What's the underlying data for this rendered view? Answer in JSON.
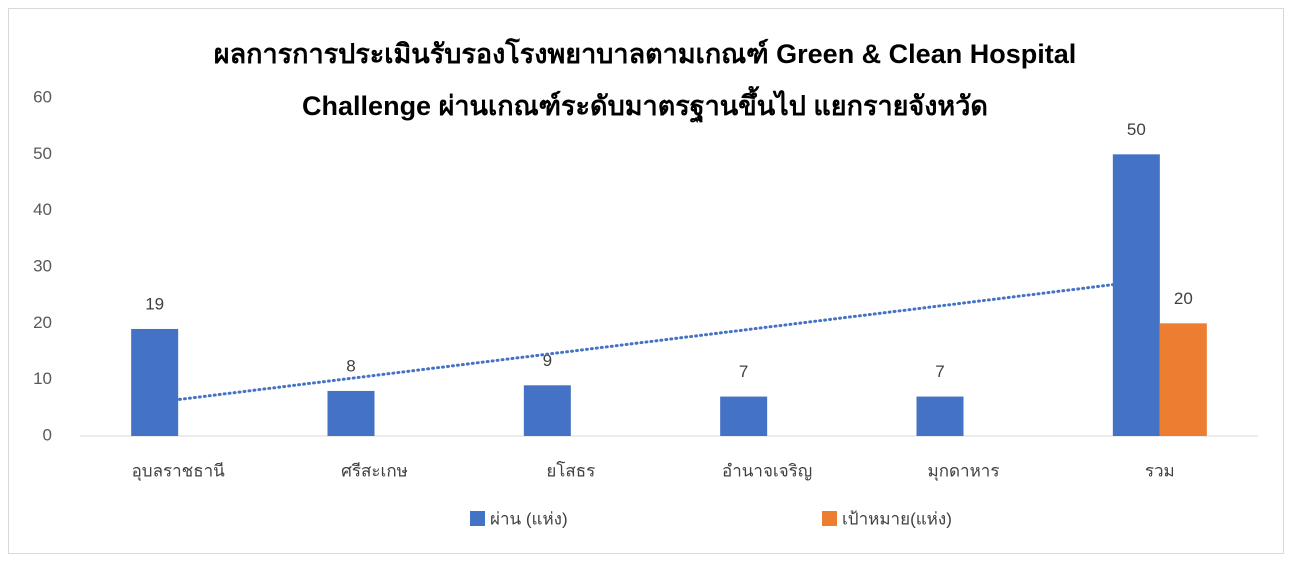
{
  "chart_data": {
    "type": "bar",
    "title": "ผลการการประเมินรับรองโรงพยาบาลตามเกณฑ์ Green & Clean Hospital Challenge ผ่านเกณฑ์ระดับมาตรฐานขึ้นไป แยกรายจังหวัด",
    "categories": [
      "อุบลราชธานี",
      "ศรีสะเกษ",
      "ยโสธร",
      "อำนาจเจริญ",
      "มุกดาหาร",
      "รวม"
    ],
    "series": [
      {
        "name": "ผ่าน (แห่ง)",
        "color": "#4472c4",
        "values": [
          19,
          8,
          9,
          7,
          7,
          50
        ],
        "trendline": "linear"
      },
      {
        "name": "เป้าหมาย(แห่ง)",
        "color": "#ed7d31",
        "values": [
          null,
          null,
          null,
          null,
          null,
          20
        ]
      }
    ],
    "ylim": [
      0,
      60
    ],
    "yticks": [
      0,
      10,
      20,
      30,
      40,
      50,
      60
    ],
    "grid": false,
    "data_labels": true,
    "legend": "bottom"
  }
}
